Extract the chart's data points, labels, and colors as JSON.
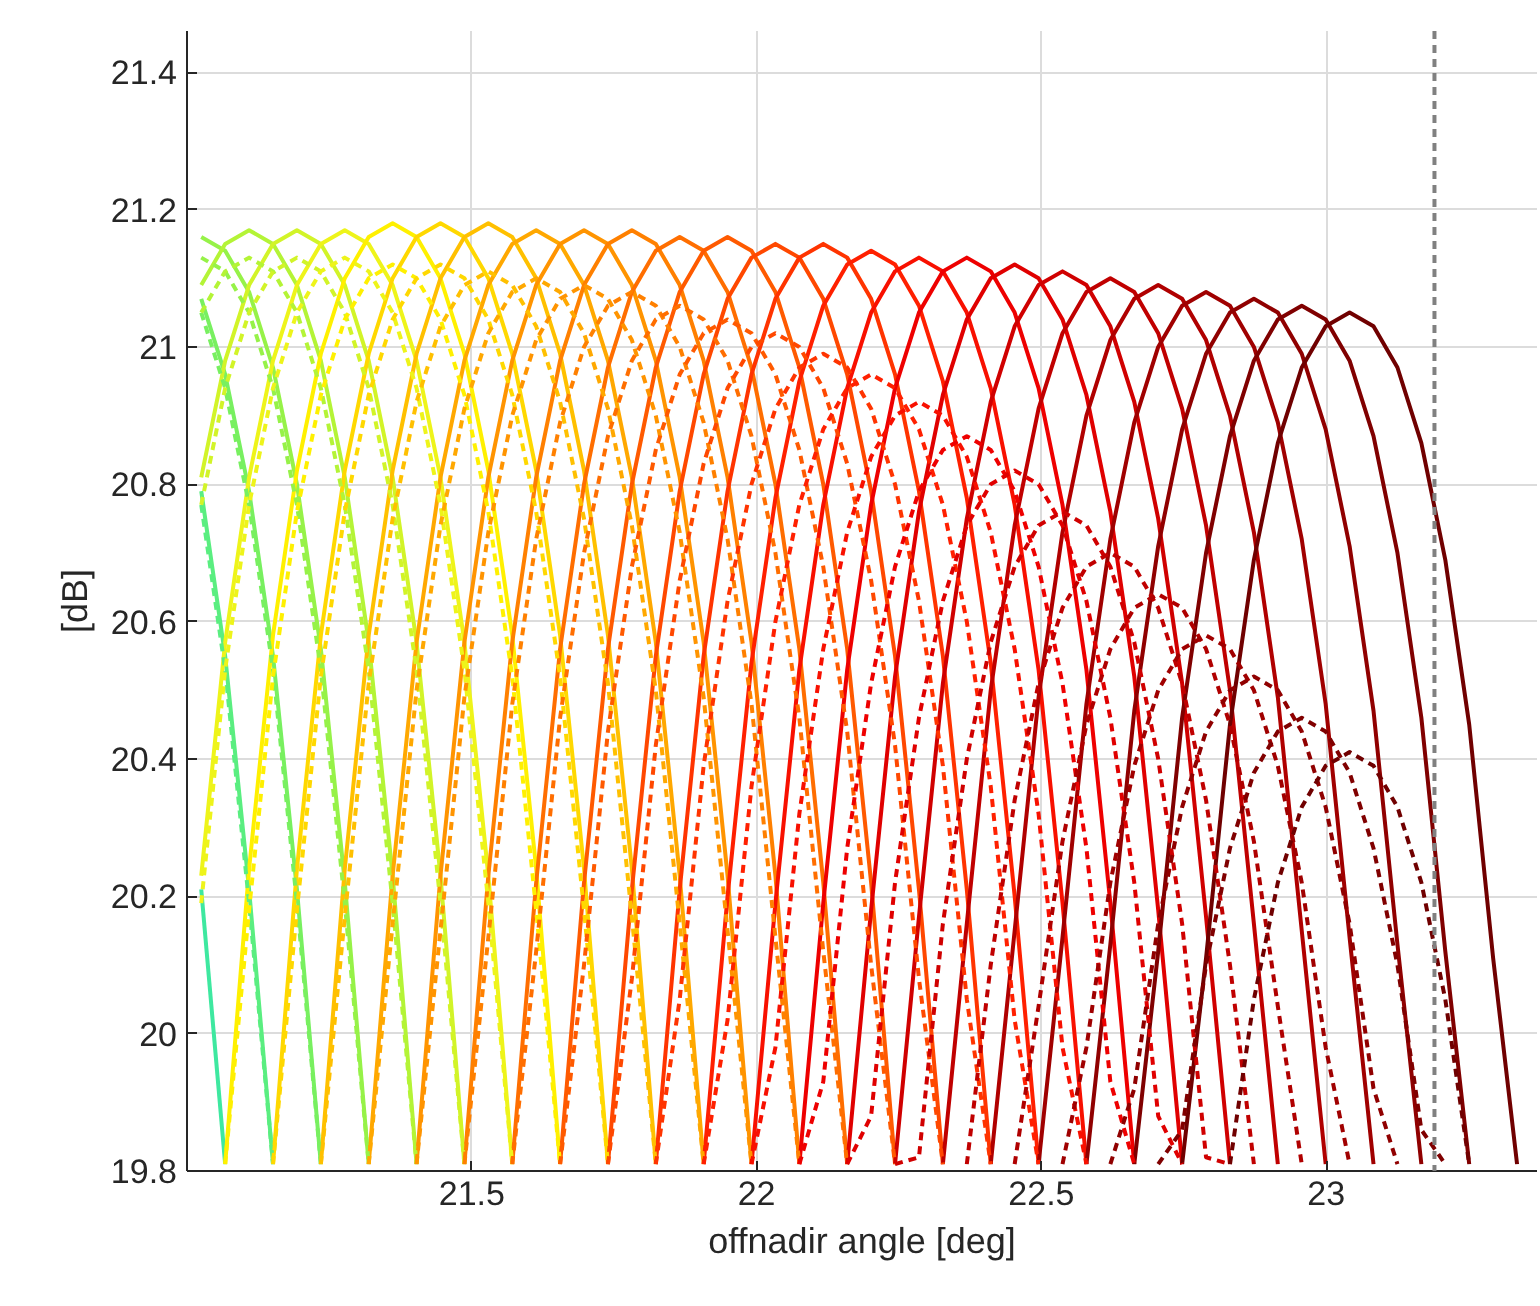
{
  "chart_data": {
    "type": "line",
    "xlabel": "offnadir angle [deg]",
    "ylabel": "[dB]",
    "xlim": [
      21.0,
      23.37
    ],
    "ylim": [
      19.8,
      21.46
    ],
    "xticks": [
      21.5,
      22,
      22.5,
      23
    ],
    "yticks": [
      19.8,
      20,
      20.2,
      20.4,
      20.6,
      20.8,
      21,
      21.2,
      21.4
    ],
    "grid": true,
    "ref_lines": [
      {
        "axis": "x",
        "value": 23.19,
        "color": "#808080",
        "line_style": "dashed"
      }
    ],
    "series": [
      {
        "color": "#3ee8a0",
        "line_style": "solid",
        "x": [
          21.025,
          21.067
        ],
        "values": [
          20.21,
          19.81
        ]
      },
      {
        "color": "#5aee80",
        "line_style": "solid",
        "x": [
          21.025,
          21.067,
          21.109,
          21.151
        ],
        "values": [
          20.79,
          20.55,
          20.21,
          19.81
        ]
      },
      {
        "color": "#78f060",
        "line_style": "solid",
        "x": [
          21.025,
          21.067,
          21.109,
          21.151,
          21.193,
          21.235
        ],
        "values": [
          21.07,
          20.96,
          20.79,
          20.55,
          20.21,
          19.81
        ]
      },
      {
        "color": "#96f248",
        "line_style": "solid",
        "x": [
          21.025,
          21.067,
          21.109,
          21.151,
          21.193,
          21.235,
          21.277,
          21.319
        ],
        "values": [
          21.16,
          21.14,
          21.08,
          20.97,
          20.8,
          20.56,
          20.22,
          19.81
        ]
      },
      {
        "color": "#b4f436",
        "line_style": "solid",
        "x": [
          21.025,
          21.067,
          21.109,
          21.151,
          21.193,
          21.235,
          21.277,
          21.319,
          21.361,
          21.403
        ],
        "values": [
          21.09,
          21.15,
          21.17,
          21.15,
          21.09,
          20.98,
          20.81,
          20.57,
          20.23,
          19.81
        ]
      },
      {
        "color": "#d2f428",
        "line_style": "solid",
        "x": [
          21.025,
          21.067,
          21.109,
          21.151,
          21.193,
          21.235,
          21.277,
          21.319,
          21.361,
          21.403,
          21.445,
          21.487
        ],
        "values": [
          20.81,
          20.98,
          21.09,
          21.15,
          21.17,
          21.15,
          21.09,
          20.98,
          20.81,
          20.57,
          20.23,
          19.81
        ]
      },
      {
        "color": "#eef41a",
        "line_style": "solid",
        "x": [
          21.025,
          21.067,
          21.109,
          21.151,
          21.193,
          21.235,
          21.277,
          21.319,
          21.361,
          21.403,
          21.445,
          21.487,
          21.529,
          21.571
        ],
        "values": [
          20.23,
          20.57,
          20.81,
          20.98,
          21.09,
          21.15,
          21.17,
          21.15,
          21.09,
          20.98,
          20.81,
          20.57,
          20.23,
          19.81
        ]
      },
      {
        "color": "#fff000",
        "line_style": "solid",
        "x": [
          21.067,
          21.109,
          21.151,
          21.193,
          21.235,
          21.277,
          21.319,
          21.361,
          21.403,
          21.445,
          21.487,
          21.529,
          21.571,
          21.613,
          21.655
        ],
        "values": [
          19.81,
          20.24,
          20.58,
          20.82,
          20.99,
          21.1,
          21.16,
          21.18,
          21.16,
          21.1,
          20.99,
          20.82,
          20.58,
          20.24,
          19.81
        ]
      },
      {
        "color": "#ffd800",
        "line_style": "solid",
        "x": [
          21.151,
          21.193,
          21.235,
          21.277,
          21.319,
          21.361,
          21.403,
          21.445,
          21.487,
          21.529,
          21.571,
          21.613,
          21.655,
          21.697,
          21.739
        ],
        "values": [
          19.81,
          20.24,
          20.58,
          20.82,
          20.99,
          21.1,
          21.16,
          21.18,
          21.16,
          21.1,
          20.99,
          20.82,
          20.58,
          20.24,
          19.81
        ]
      },
      {
        "color": "#ffc000",
        "line_style": "solid",
        "x": [
          21.235,
          21.277,
          21.319,
          21.361,
          21.403,
          21.445,
          21.487,
          21.529,
          21.571,
          21.613,
          21.655,
          21.697,
          21.739,
          21.781,
          21.823
        ],
        "values": [
          19.81,
          20.24,
          20.58,
          20.82,
          20.99,
          21.1,
          21.16,
          21.18,
          21.16,
          21.1,
          20.99,
          20.82,
          20.58,
          20.24,
          19.81
        ]
      },
      {
        "color": "#ffa800",
        "line_style": "solid",
        "x": [
          21.319,
          21.361,
          21.403,
          21.445,
          21.487,
          21.529,
          21.571,
          21.613,
          21.655,
          21.697,
          21.739,
          21.781,
          21.823,
          21.865,
          21.907
        ],
        "values": [
          19.81,
          20.23,
          20.57,
          20.81,
          20.98,
          21.09,
          21.15,
          21.17,
          21.15,
          21.09,
          20.98,
          20.81,
          20.57,
          20.23,
          19.81
        ]
      },
      {
        "color": "#ff9400",
        "line_style": "solid",
        "x": [
          21.403,
          21.445,
          21.487,
          21.529,
          21.571,
          21.613,
          21.655,
          21.697,
          21.739,
          21.781,
          21.823,
          21.865,
          21.907,
          21.949,
          21.991
        ],
        "values": [
          19.81,
          20.23,
          20.57,
          20.81,
          20.98,
          21.09,
          21.15,
          21.17,
          21.15,
          21.09,
          20.98,
          20.81,
          20.57,
          20.23,
          19.81
        ]
      },
      {
        "color": "#ff8000",
        "line_style": "solid",
        "x": [
          21.487,
          21.529,
          21.571,
          21.613,
          21.655,
          21.697,
          21.739,
          21.781,
          21.823,
          21.865,
          21.907,
          21.949,
          21.991,
          22.033,
          22.075
        ],
        "values": [
          19.81,
          20.23,
          20.57,
          20.81,
          20.98,
          21.09,
          21.15,
          21.17,
          21.15,
          21.09,
          20.98,
          20.81,
          20.57,
          20.23,
          19.81
        ]
      },
      {
        "color": "#ff6e00",
        "line_style": "solid",
        "x": [
          21.571,
          21.613,
          21.655,
          21.697,
          21.739,
          21.781,
          21.823,
          21.865,
          21.907,
          21.949,
          21.991,
          22.033,
          22.075,
          22.117,
          22.159
        ],
        "values": [
          19.81,
          20.22,
          20.56,
          20.8,
          20.97,
          21.08,
          21.14,
          21.16,
          21.14,
          21.08,
          20.97,
          20.8,
          20.56,
          20.22,
          19.81
        ]
      },
      {
        "color": "#ff5a00",
        "line_style": "solid",
        "x": [
          21.655,
          21.697,
          21.739,
          21.781,
          21.823,
          21.865,
          21.907,
          21.949,
          21.991,
          22.033,
          22.075,
          22.117,
          22.159,
          22.201,
          22.243
        ],
        "values": [
          19.81,
          20.22,
          20.56,
          20.8,
          20.97,
          21.08,
          21.14,
          21.16,
          21.14,
          21.08,
          20.97,
          20.8,
          20.56,
          20.22,
          19.81
        ]
      },
      {
        "color": "#ff4800",
        "line_style": "solid",
        "x": [
          21.739,
          21.781,
          21.823,
          21.865,
          21.907,
          21.949,
          21.991,
          22.033,
          22.075,
          22.117,
          22.159,
          22.201,
          22.243,
          22.285,
          22.327
        ],
        "values": [
          19.81,
          20.21,
          20.55,
          20.79,
          20.96,
          21.07,
          21.13,
          21.15,
          21.13,
          21.07,
          20.96,
          20.79,
          20.55,
          20.21,
          19.81
        ]
      },
      {
        "color": "#ff3400",
        "line_style": "solid",
        "x": [
          21.823,
          21.865,
          21.907,
          21.949,
          21.991,
          22.033,
          22.075,
          22.117,
          22.159,
          22.201,
          22.243,
          22.285,
          22.327,
          22.369,
          22.411
        ],
        "values": [
          19.81,
          20.21,
          20.55,
          20.79,
          20.96,
          21.07,
          21.13,
          21.15,
          21.13,
          21.07,
          20.96,
          20.79,
          20.55,
          20.21,
          19.81
        ]
      },
      {
        "color": "#ff2000",
        "line_style": "solid",
        "x": [
          21.907,
          21.949,
          21.991,
          22.033,
          22.075,
          22.117,
          22.159,
          22.201,
          22.243,
          22.285,
          22.327,
          22.369,
          22.411,
          22.453,
          22.495
        ],
        "values": [
          19.81,
          20.2,
          20.54,
          20.78,
          20.95,
          21.06,
          21.12,
          21.14,
          21.12,
          21.06,
          20.95,
          20.78,
          20.54,
          20.2,
          19.81
        ]
      },
      {
        "color": "#f81000",
        "line_style": "solid",
        "x": [
          21.991,
          22.033,
          22.075,
          22.117,
          22.159,
          22.201,
          22.243,
          22.285,
          22.327,
          22.369,
          22.411,
          22.453,
          22.495,
          22.537,
          22.579
        ],
        "values": [
          19.81,
          20.19,
          20.53,
          20.77,
          20.94,
          21.05,
          21.11,
          21.13,
          21.11,
          21.05,
          20.94,
          20.77,
          20.53,
          20.19,
          19.81
        ]
      },
      {
        "color": "#ee0000",
        "line_style": "solid",
        "x": [
          22.075,
          22.117,
          22.159,
          22.201,
          22.243,
          22.285,
          22.327,
          22.369,
          22.411,
          22.453,
          22.495,
          22.537,
          22.579,
          22.621,
          22.663
        ],
        "values": [
          19.81,
          20.19,
          20.53,
          20.77,
          20.94,
          21.05,
          21.11,
          21.13,
          21.11,
          21.05,
          20.94,
          20.77,
          20.53,
          20.19,
          19.81
        ]
      },
      {
        "color": "#e00000",
        "line_style": "solid",
        "x": [
          22.159,
          22.201,
          22.243,
          22.285,
          22.327,
          22.369,
          22.411,
          22.453,
          22.495,
          22.537,
          22.579,
          22.621,
          22.663,
          22.705,
          22.747
        ],
        "values": [
          19.81,
          20.18,
          20.52,
          20.76,
          20.93,
          21.04,
          21.1,
          21.12,
          21.1,
          21.04,
          20.93,
          20.76,
          20.52,
          20.18,
          19.81
        ]
      },
      {
        "color": "#d00000",
        "line_style": "solid",
        "x": [
          22.243,
          22.285,
          22.327,
          22.369,
          22.411,
          22.453,
          22.495,
          22.537,
          22.579,
          22.621,
          22.663,
          22.705,
          22.747,
          22.789,
          22.831
        ],
        "values": [
          19.81,
          20.17,
          20.51,
          20.75,
          20.92,
          21.03,
          21.09,
          21.11,
          21.09,
          21.03,
          20.92,
          20.75,
          20.51,
          20.17,
          19.81
        ]
      },
      {
        "color": "#c00000",
        "line_style": "solid",
        "x": [
          22.327,
          22.369,
          22.411,
          22.453,
          22.495,
          22.537,
          22.579,
          22.621,
          22.663,
          22.705,
          22.747,
          22.789,
          22.831,
          22.873,
          22.915
        ],
        "values": [
          19.81,
          20.16,
          20.5,
          20.74,
          20.91,
          21.02,
          21.08,
          21.1,
          21.08,
          21.02,
          20.91,
          20.74,
          20.5,
          20.16,
          19.81
        ]
      },
      {
        "color": "#b00000",
        "line_style": "solid",
        "x": [
          22.411,
          22.453,
          22.495,
          22.537,
          22.579,
          22.621,
          22.663,
          22.705,
          22.747,
          22.789,
          22.831,
          22.873,
          22.915,
          22.957,
          22.999
        ],
        "values": [
          19.81,
          20.15,
          20.49,
          20.73,
          20.9,
          21.01,
          21.07,
          21.09,
          21.07,
          21.01,
          20.9,
          20.73,
          20.49,
          20.15,
          19.81
        ]
      },
      {
        "color": "#a00000",
        "line_style": "solid",
        "x": [
          22.495,
          22.537,
          22.579,
          22.621,
          22.663,
          22.705,
          22.747,
          22.789,
          22.831,
          22.873,
          22.915,
          22.957,
          22.999,
          23.041,
          23.083
        ],
        "values": [
          19.81,
          20.14,
          20.48,
          20.72,
          20.89,
          21.0,
          21.06,
          21.08,
          21.06,
          21.0,
          20.89,
          20.72,
          20.48,
          20.14,
          19.81
        ]
      },
      {
        "color": "#900000",
        "line_style": "solid",
        "x": [
          22.579,
          22.621,
          22.663,
          22.705,
          22.747,
          22.789,
          22.831,
          22.873,
          22.915,
          22.957,
          22.999,
          23.041,
          23.083,
          23.125,
          23.167
        ],
        "values": [
          19.81,
          20.13,
          20.47,
          20.71,
          20.88,
          20.99,
          21.05,
          21.07,
          21.05,
          20.99,
          20.88,
          20.71,
          20.47,
          20.13,
          19.81
        ]
      },
      {
        "color": "#800000",
        "line_style": "solid",
        "x": [
          22.663,
          22.705,
          22.747,
          22.789,
          22.831,
          22.873,
          22.915,
          22.957,
          22.999,
          23.041,
          23.083,
          23.125,
          23.167,
          23.209,
          23.251
        ],
        "values": [
          19.81,
          20.12,
          20.46,
          20.7,
          20.87,
          20.98,
          21.04,
          21.06,
          21.04,
          20.98,
          20.87,
          20.7,
          20.46,
          20.12,
          19.81
        ]
      },
      {
        "color": "#700000",
        "line_style": "solid",
        "x": [
          22.747,
          22.789,
          22.831,
          22.873,
          22.915,
          22.957,
          22.999,
          23.041,
          23.083,
          23.125,
          23.167,
          23.209,
          23.251,
          23.293,
          23.335
        ],
        "values": [
          19.81,
          20.11,
          20.45,
          20.69,
          20.86,
          20.97,
          21.03,
          21.05,
          21.03,
          20.97,
          20.86,
          20.69,
          20.45,
          20.11,
          19.81
        ]
      },
      {
        "color": "#5aee80",
        "line_style": "dashed",
        "x": [
          21.025,
          21.067,
          21.109,
          21.151
        ],
        "values": [
          20.77,
          20.53,
          20.19,
          19.81
        ]
      },
      {
        "color": "#78f060",
        "line_style": "dashed",
        "x": [
          21.025,
          21.067,
          21.109,
          21.151,
          21.193,
          21.235
        ],
        "values": [
          21.05,
          20.94,
          20.77,
          20.53,
          20.19,
          19.81
        ]
      },
      {
        "color": "#96f248",
        "line_style": "dashed",
        "x": [
          21.025,
          21.067,
          21.109,
          21.151,
          21.193,
          21.235,
          21.277,
          21.319
        ],
        "values": [
          21.13,
          21.11,
          21.05,
          20.94,
          20.77,
          20.53,
          20.19,
          19.81
        ]
      },
      {
        "color": "#b4f436",
        "line_style": "dashed",
        "x": [
          21.025,
          21.067,
          21.109,
          21.151,
          21.193,
          21.235,
          21.277,
          21.319,
          21.361,
          21.403
        ],
        "values": [
          21.05,
          21.11,
          21.13,
          21.11,
          21.05,
          20.94,
          20.77,
          20.53,
          20.19,
          19.81
        ]
      },
      {
        "color": "#d2f428",
        "line_style": "dashed",
        "x": [
          21.025,
          21.067,
          21.109,
          21.151,
          21.193,
          21.235,
          21.277,
          21.319,
          21.361,
          21.403,
          21.445,
          21.487
        ],
        "values": [
          20.77,
          20.94,
          21.05,
          21.11,
          21.13,
          21.11,
          21.05,
          20.94,
          20.77,
          20.53,
          20.19,
          19.81
        ]
      },
      {
        "color": "#eef41a",
        "line_style": "dashed",
        "x": [
          21.025,
          21.067,
          21.109,
          21.151,
          21.193,
          21.235,
          21.277,
          21.319,
          21.361,
          21.403,
          21.445,
          21.487,
          21.529,
          21.571
        ],
        "values": [
          20.19,
          20.53,
          20.77,
          20.94,
          21.05,
          21.11,
          21.13,
          21.11,
          21.05,
          20.94,
          20.77,
          20.53,
          20.19,
          19.81
        ]
      },
      {
        "color": "#fff000",
        "line_style": "dashed",
        "x": [
          21.067,
          21.109,
          21.151,
          21.193,
          21.235,
          21.277,
          21.319,
          21.361,
          21.403,
          21.445,
          21.487,
          21.529,
          21.571,
          21.613,
          21.655
        ],
        "values": [
          19.81,
          20.18,
          20.52,
          20.76,
          20.93,
          21.04,
          21.1,
          21.12,
          21.1,
          21.04,
          20.93,
          20.76,
          20.52,
          20.18,
          19.81
        ]
      },
      {
        "color": "#ffd800",
        "line_style": "dashed",
        "x": [
          21.151,
          21.193,
          21.235,
          21.277,
          21.319,
          21.361,
          21.403,
          21.445,
          21.487,
          21.529,
          21.571,
          21.613,
          21.655,
          21.697,
          21.739
        ],
        "values": [
          19.81,
          20.18,
          20.52,
          20.76,
          20.93,
          21.04,
          21.1,
          21.12,
          21.1,
          21.04,
          20.93,
          20.76,
          20.52,
          20.18,
          19.81
        ]
      },
      {
        "color": "#ffc000",
        "line_style": "dashed",
        "x": [
          21.235,
          21.277,
          21.319,
          21.361,
          21.403,
          21.445,
          21.487,
          21.529,
          21.571,
          21.613,
          21.655,
          21.697,
          21.739,
          21.781,
          21.823
        ],
        "values": [
          19.81,
          20.17,
          20.51,
          20.75,
          20.92,
          21.03,
          21.09,
          21.11,
          21.09,
          21.03,
          20.92,
          20.75,
          20.51,
          20.17,
          19.81
        ]
      },
      {
        "color": "#ffa800",
        "line_style": "dashed",
        "x": [
          21.319,
          21.361,
          21.403,
          21.445,
          21.487,
          21.529,
          21.571,
          21.613,
          21.655,
          21.697,
          21.739,
          21.781,
          21.823,
          21.865,
          21.907
        ],
        "values": [
          19.81,
          20.16,
          20.5,
          20.74,
          20.91,
          21.02,
          21.08,
          21.1,
          21.08,
          21.02,
          20.91,
          20.74,
          20.5,
          20.16,
          19.81
        ]
      },
      {
        "color": "#ff9400",
        "line_style": "dashed",
        "x": [
          21.403,
          21.445,
          21.487,
          21.529,
          21.571,
          21.613,
          21.655,
          21.697,
          21.739,
          21.781,
          21.823,
          21.865,
          21.907,
          21.949,
          21.991
        ],
        "values": [
          19.81,
          20.15,
          20.49,
          20.73,
          20.9,
          21.01,
          21.07,
          21.09,
          21.07,
          21.01,
          20.9,
          20.73,
          20.49,
          20.15,
          19.81
        ]
      },
      {
        "color": "#ff8000",
        "line_style": "dashed",
        "x": [
          21.487,
          21.529,
          21.571,
          21.613,
          21.655,
          21.697,
          21.739,
          21.781,
          21.823,
          21.865,
          21.907,
          21.949,
          21.991,
          22.033,
          22.075
        ],
        "values": [
          19.81,
          20.14,
          20.48,
          20.72,
          20.89,
          21.0,
          21.06,
          21.08,
          21.06,
          21.0,
          20.89,
          20.72,
          20.48,
          20.14,
          19.81
        ]
      },
      {
        "color": "#ff6e00",
        "line_style": "dashed",
        "x": [
          21.571,
          21.613,
          21.655,
          21.697,
          21.739,
          21.781,
          21.823,
          21.865,
          21.907,
          21.949,
          21.991,
          22.033,
          22.075,
          22.117,
          22.159
        ],
        "values": [
          19.81,
          20.12,
          20.46,
          20.7,
          20.87,
          20.98,
          21.04,
          21.06,
          21.04,
          20.98,
          20.87,
          20.7,
          20.46,
          20.12,
          19.81
        ]
      },
      {
        "color": "#ff5a00",
        "line_style": "dashed",
        "x": [
          21.655,
          21.697,
          21.739,
          21.781,
          21.823,
          21.865,
          21.907,
          21.949,
          21.991,
          22.033,
          22.075,
          22.117,
          22.159,
          22.201,
          22.243
        ],
        "values": [
          19.81,
          20.1,
          20.44,
          20.68,
          20.85,
          20.96,
          21.02,
          21.04,
          21.02,
          20.96,
          20.85,
          20.68,
          20.44,
          20.1,
          19.81
        ]
      },
      {
        "color": "#ff4800",
        "line_style": "dashed",
        "x": [
          21.739,
          21.781,
          21.823,
          21.865,
          21.907,
          21.949,
          21.991,
          22.033,
          22.075,
          22.117,
          22.159,
          22.201,
          22.243,
          22.285,
          22.327
        ],
        "values": [
          19.81,
          20.08,
          20.42,
          20.66,
          20.83,
          20.94,
          21.0,
          21.02,
          21.0,
          20.94,
          20.83,
          20.66,
          20.42,
          20.08,
          19.81
        ]
      },
      {
        "color": "#ff3400",
        "line_style": "dashed",
        "x": [
          21.823,
          21.865,
          21.907,
          21.949,
          21.991,
          22.033,
          22.075,
          22.117,
          22.159,
          22.201,
          22.243,
          22.285,
          22.327,
          22.369,
          22.411
        ],
        "values": [
          19.81,
          20.05,
          20.39,
          20.63,
          20.8,
          20.91,
          20.97,
          20.99,
          20.97,
          20.91,
          20.8,
          20.63,
          20.39,
          20.05,
          19.81
        ]
      },
      {
        "color": "#ff2000",
        "line_style": "dashed",
        "x": [
          21.907,
          21.949,
          21.991,
          22.033,
          22.075,
          22.117,
          22.159,
          22.201,
          22.243,
          22.285,
          22.327,
          22.369,
          22.411,
          22.453,
          22.495
        ],
        "values": [
          19.81,
          20.02,
          20.36,
          20.6,
          20.77,
          20.88,
          20.94,
          20.96,
          20.94,
          20.88,
          20.77,
          20.6,
          20.36,
          20.02,
          19.81
        ]
      },
      {
        "color": "#f81000",
        "line_style": "dashed",
        "x": [
          21.991,
          22.033,
          22.075,
          22.117,
          22.159,
          22.201,
          22.243,
          22.285,
          22.327,
          22.369,
          22.411,
          22.453,
          22.495,
          22.537,
          22.579
        ],
        "values": [
          19.81,
          19.98,
          20.32,
          20.56,
          20.73,
          20.84,
          20.9,
          20.92,
          20.9,
          20.84,
          20.73,
          20.56,
          20.32,
          19.98,
          19.81
        ]
      },
      {
        "color": "#ee0000",
        "line_style": "dashed",
        "x": [
          22.075,
          22.117,
          22.159,
          22.201,
          22.243,
          22.285,
          22.327,
          22.369,
          22.411,
          22.453,
          22.495,
          22.537,
          22.579,
          22.621,
          22.663
        ],
        "values": [
          19.81,
          19.93,
          20.27,
          20.51,
          20.68,
          20.79,
          20.85,
          20.87,
          20.85,
          20.79,
          20.68,
          20.51,
          20.27,
          19.93,
          19.81
        ]
      },
      {
        "color": "#e00000",
        "line_style": "dashed",
        "x": [
          22.159,
          22.201,
          22.243,
          22.285,
          22.327,
          22.369,
          22.411,
          22.453,
          22.495,
          22.537,
          22.579,
          22.621,
          22.663,
          22.705,
          22.747
        ],
        "values": [
          19.81,
          19.88,
          20.22,
          20.46,
          20.63,
          20.74,
          20.8,
          20.82,
          20.8,
          20.74,
          20.63,
          20.46,
          20.22,
          19.88,
          19.81
        ]
      },
      {
        "color": "#d00000",
        "line_style": "dashed",
        "x": [
          22.243,
          22.285,
          22.327,
          22.369,
          22.411,
          22.453,
          22.495,
          22.537,
          22.579,
          22.621,
          22.663,
          22.705,
          22.747,
          22.789,
          22.831
        ],
        "values": [
          19.81,
          19.82,
          20.16,
          20.4,
          20.57,
          20.68,
          20.74,
          20.76,
          20.74,
          20.68,
          20.57,
          20.4,
          20.16,
          19.82,
          19.81
        ]
      },
      {
        "color": "#c00000",
        "line_style": "dashed",
        "x": [
          22.369,
          22.411,
          22.453,
          22.495,
          22.537,
          22.579,
          22.621,
          22.663,
          22.705,
          22.747,
          22.789,
          22.831,
          22.873
        ],
        "values": [
          19.81,
          20.1,
          20.34,
          20.51,
          20.62,
          20.68,
          20.7,
          20.68,
          20.62,
          20.51,
          20.34,
          20.1,
          19.81
        ]
      },
      {
        "color": "#b00000",
        "line_style": "dashed",
        "x": [
          22.453,
          22.495,
          22.537,
          22.579,
          22.621,
          22.663,
          22.705,
          22.747,
          22.789,
          22.831,
          22.873,
          22.915,
          22.957
        ],
        "values": [
          19.81,
          20.04,
          20.28,
          20.45,
          20.56,
          20.62,
          20.64,
          20.62,
          20.56,
          20.45,
          20.28,
          20.04,
          19.81
        ]
      },
      {
        "color": "#a00000",
        "line_style": "dashed",
        "x": [
          22.537,
          22.579,
          22.621,
          22.663,
          22.705,
          22.747,
          22.789,
          22.831,
          22.873,
          22.915,
          22.957,
          22.999,
          23.041
        ],
        "values": [
          19.81,
          19.98,
          20.22,
          20.39,
          20.5,
          20.56,
          20.58,
          20.56,
          20.5,
          20.39,
          20.22,
          19.98,
          19.81
        ]
      },
      {
        "color": "#900000",
        "line_style": "dashed",
        "x": [
          22.621,
          22.663,
          22.705,
          22.747,
          22.789,
          22.831,
          22.873,
          22.915,
          22.957,
          22.999,
          23.041,
          23.083,
          23.125
        ],
        "values": [
          19.81,
          19.92,
          20.16,
          20.33,
          20.44,
          20.5,
          20.52,
          20.5,
          20.44,
          20.33,
          20.16,
          19.92,
          19.81
        ]
      },
      {
        "color": "#800000",
        "line_style": "dashed",
        "x": [
          22.705,
          22.747,
          22.789,
          22.831,
          22.873,
          22.915,
          22.957,
          22.999,
          23.041,
          23.083,
          23.125,
          23.167,
          23.209
        ],
        "values": [
          19.81,
          19.86,
          20.1,
          20.27,
          20.38,
          20.44,
          20.46,
          20.44,
          20.38,
          20.27,
          20.1,
          19.86,
          19.81
        ]
      },
      {
        "color": "#700000",
        "line_style": "dashed",
        "x": [
          22.831,
          22.873,
          22.915,
          22.957,
          22.999,
          23.041,
          23.083,
          23.125,
          23.167,
          23.209,
          23.251
        ],
        "values": [
          19.81,
          20.05,
          20.22,
          20.33,
          20.39,
          20.41,
          20.39,
          20.33,
          20.22,
          20.05,
          19.81
        ]
      }
    ]
  }
}
